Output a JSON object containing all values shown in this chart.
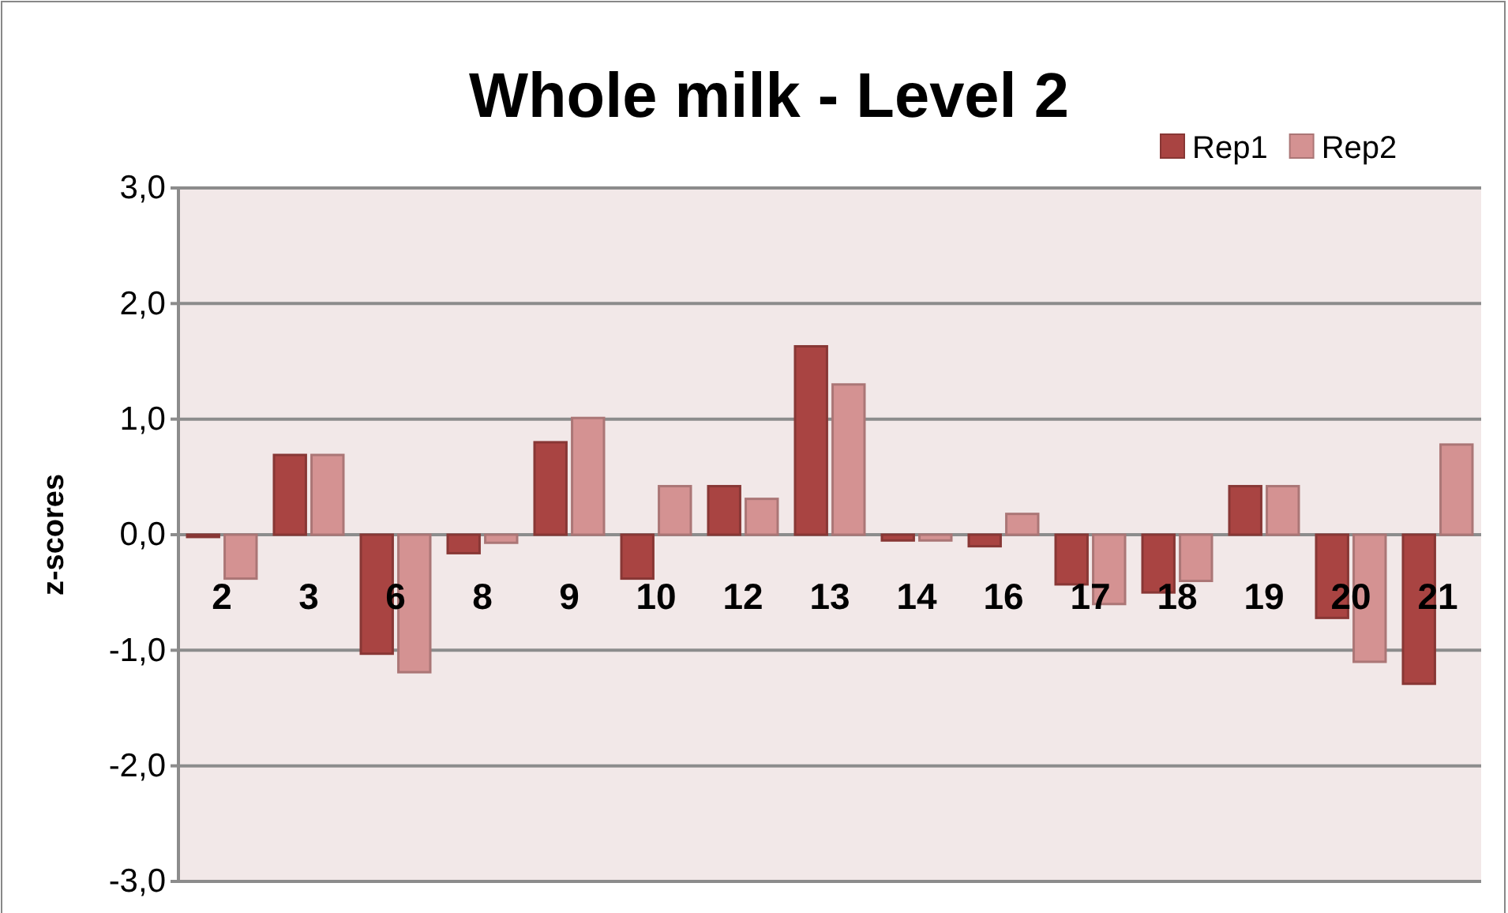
{
  "chart_data": {
    "type": "bar",
    "title": "Whole milk - Level 2",
    "ylabel": "z-scores",
    "categories": [
      "2",
      "3",
      "6",
      "8",
      "9",
      "10",
      "12",
      "13",
      "14",
      "16",
      "17",
      "18",
      "19",
      "20",
      "21"
    ],
    "series": [
      {
        "name": "Rep1",
        "color": "#a94442",
        "values": [
          -0.02,
          0.69,
          -1.03,
          -0.16,
          0.8,
          -0.38,
          0.42,
          1.63,
          -0.05,
          -0.1,
          -0.43,
          -0.5,
          0.42,
          -0.72,
          -1.29
        ]
      },
      {
        "name": "Rep2",
        "color": "#d49292",
        "values": [
          -0.38,
          0.69,
          -1.19,
          -0.07,
          1.01,
          0.42,
          0.31,
          1.3,
          -0.05,
          0.18,
          -0.6,
          -0.4,
          0.42,
          -1.1,
          0.78
        ]
      }
    ],
    "ylim": [
      -3,
      3
    ],
    "yticks": [
      {
        "value": -3,
        "label": "-3,0"
      },
      {
        "value": -2,
        "label": "-2,0"
      },
      {
        "value": -1,
        "label": "-1,0"
      },
      {
        "value": 0,
        "label": "0,0"
      },
      {
        "value": 1,
        "label": "1,0"
      },
      {
        "value": 2,
        "label": "2,0"
      },
      {
        "value": 3,
        "label": "3,0"
      }
    ],
    "grid": "y",
    "legend": "top right"
  }
}
